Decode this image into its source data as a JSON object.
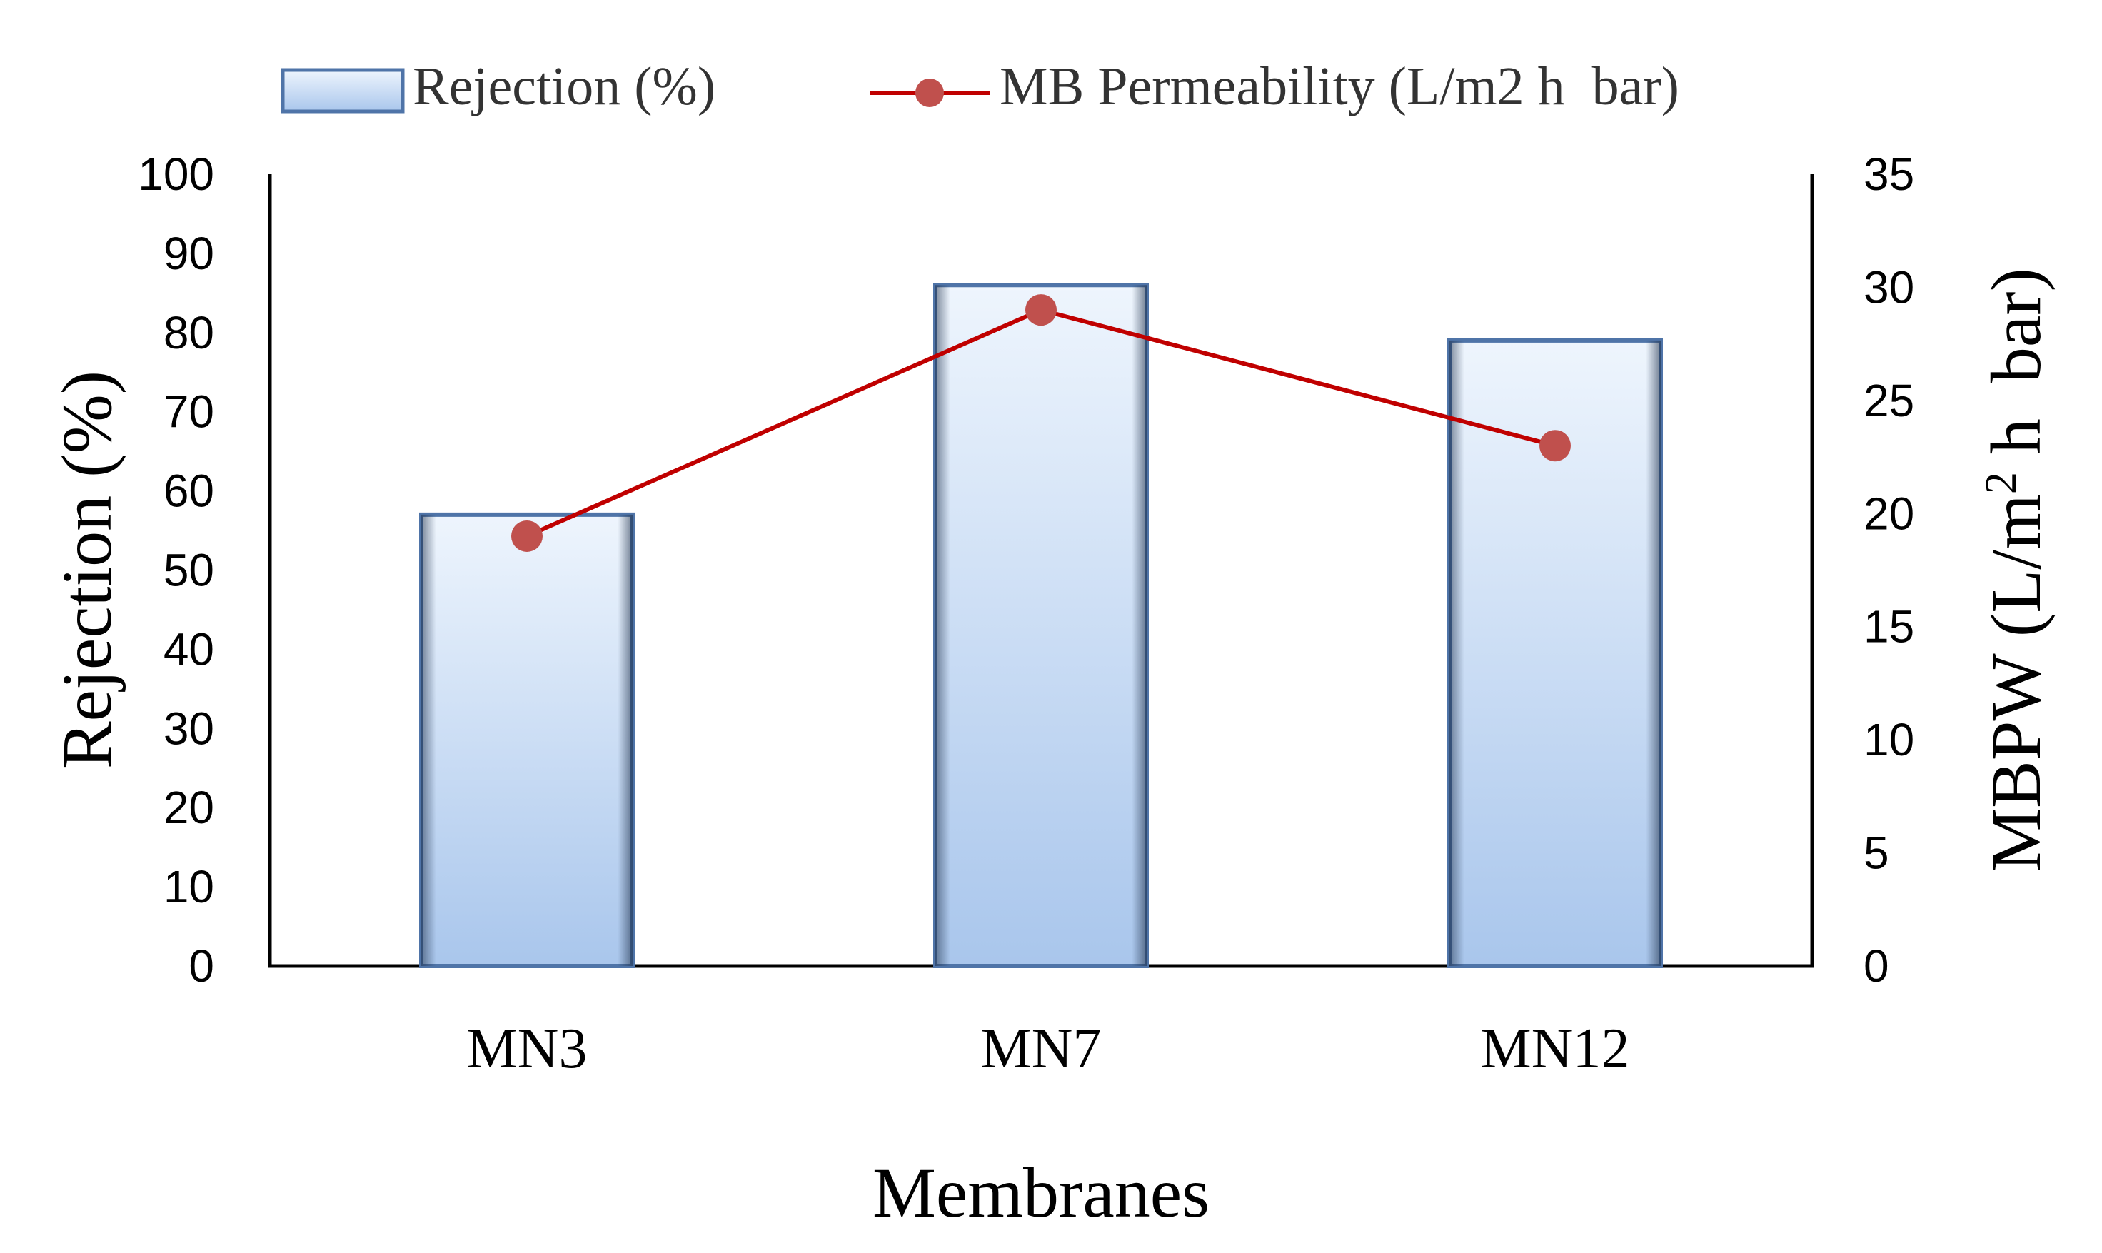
{
  "chart_data": {
    "type": "bar",
    "title": "",
    "categories": [
      "MN3",
      "MN7",
      "MN12"
    ],
    "series": [
      {
        "name": "Rejection (%)",
        "kind": "bar",
        "axis": "left",
        "values": [
          57,
          86,
          79
        ]
      },
      {
        "name": "MB Permeability (L/m2 h  bar)",
        "kind": "line",
        "axis": "right",
        "values": [
          19,
          29,
          23
        ]
      }
    ],
    "xlabel": "Membranes",
    "ylabel": "Rejection (%)",
    "y2label": "MBPW (L/m2 h  bar)",
    "ylim": [
      0,
      100
    ],
    "y2lim": [
      0,
      35
    ],
    "yticks": [
      "0",
      "10",
      "20",
      "30",
      "40",
      "50",
      "60",
      "70",
      "80",
      "90",
      "100"
    ],
    "y2ticks": [
      "0",
      "5",
      "10",
      "15",
      "20",
      "25",
      "30",
      "35"
    ],
    "legend_position": "top",
    "grid": false,
    "colors": {
      "bar_stroke": "#4f74a8",
      "bar_light": "#eef5fd",
      "bar_dark": "#a9c6ec",
      "line": "#c00000",
      "marker": "#c0504d",
      "axis": "#000000"
    }
  }
}
